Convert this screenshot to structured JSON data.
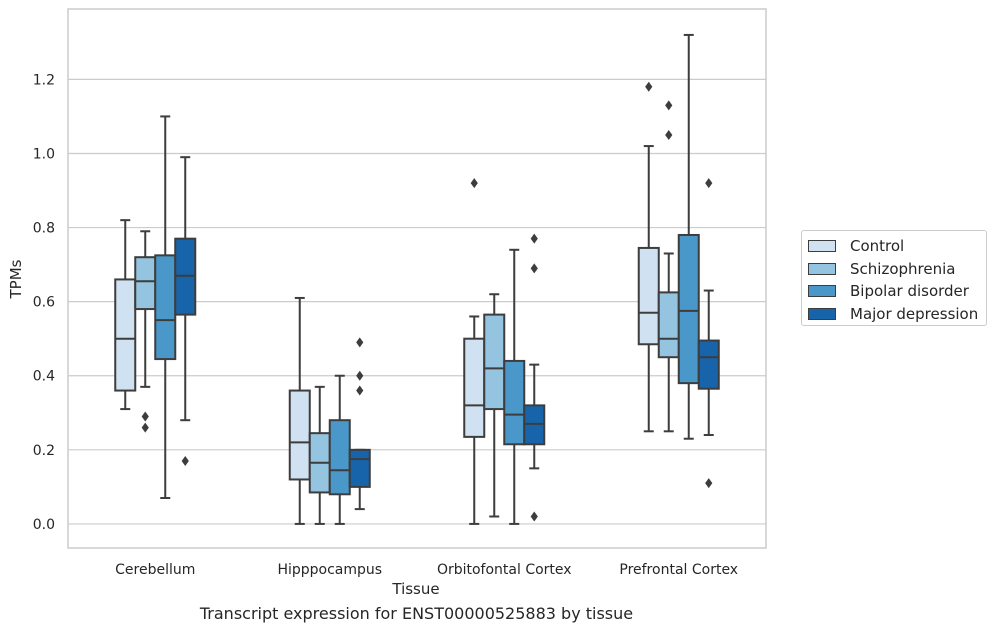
{
  "chart_data": {
    "type": "boxplot",
    "xlabel": "Tissue",
    "ylabel": "TPMs",
    "caption": "Transcript expression for ENST00000525883 by tissue",
    "ylim": [
      -0.065,
      1.39
    ],
    "yticks": [
      "0.0",
      "0.2",
      "0.4",
      "0.6",
      "0.8",
      "1.0",
      "1.2"
    ],
    "grid": "horizontal",
    "legend_position": "right",
    "categories": [
      "Cerebellum",
      "Hipppocampus",
      "Orbitofontal Cortex",
      "Prefrontal Cortex"
    ],
    "series": [
      {
        "name": "Control",
        "color": "#d0e1f2",
        "boxes": [
          {
            "whislo": 0.31,
            "q1": 0.36,
            "med": 0.5,
            "q3": 0.66,
            "whishi": 0.82,
            "fliers": []
          },
          {
            "whislo": 0.0,
            "q1": 0.12,
            "med": 0.22,
            "q3": 0.36,
            "whishi": 0.61,
            "fliers": []
          },
          {
            "whislo": 0.0,
            "q1": 0.235,
            "med": 0.32,
            "q3": 0.5,
            "whishi": 0.56,
            "fliers": [
              0.92
            ]
          },
          {
            "whislo": 0.25,
            "q1": 0.485,
            "med": 0.57,
            "q3": 0.745,
            "whishi": 1.02,
            "fliers": [
              1.18
            ]
          }
        ]
      },
      {
        "name": "Schizophrenia",
        "color": "#94c4df",
        "boxes": [
          {
            "whislo": 0.37,
            "q1": 0.58,
            "med": 0.655,
            "q3": 0.72,
            "whishi": 0.79,
            "fliers": [
              0.29,
              0.26
            ]
          },
          {
            "whislo": 0.0,
            "q1": 0.085,
            "med": 0.165,
            "q3": 0.245,
            "whishi": 0.37,
            "fliers": []
          },
          {
            "whislo": 0.02,
            "q1": 0.31,
            "med": 0.42,
            "q3": 0.565,
            "whishi": 0.62,
            "fliers": []
          },
          {
            "whislo": 0.25,
            "q1": 0.45,
            "med": 0.5,
            "q3": 0.625,
            "whishi": 0.73,
            "fliers": [
              1.13,
              1.05
            ]
          }
        ]
      },
      {
        "name": "Bipolar disorder",
        "color": "#4a98c9",
        "boxes": [
          {
            "whislo": 0.07,
            "q1": 0.445,
            "med": 0.55,
            "q3": 0.725,
            "whishi": 1.1,
            "fliers": []
          },
          {
            "whislo": 0.0,
            "q1": 0.08,
            "med": 0.145,
            "q3": 0.28,
            "whishi": 0.4,
            "fliers": []
          },
          {
            "whislo": 0.0,
            "q1": 0.215,
            "med": 0.295,
            "q3": 0.44,
            "whishi": 0.74,
            "fliers": []
          },
          {
            "whislo": 0.23,
            "q1": 0.38,
            "med": 0.575,
            "q3": 0.78,
            "whishi": 1.32,
            "fliers": []
          }
        ]
      },
      {
        "name": "Major depression",
        "color": "#1764ab",
        "boxes": [
          {
            "whislo": 0.28,
            "q1": 0.565,
            "med": 0.67,
            "q3": 0.77,
            "whishi": 0.99,
            "fliers": [
              0.17
            ]
          },
          {
            "whislo": 0.04,
            "q1": 0.1,
            "med": 0.175,
            "q3": 0.2,
            "whishi": 0.2,
            "fliers": [
              0.49,
              0.4,
              0.36
            ]
          },
          {
            "whislo": 0.15,
            "q1": 0.215,
            "med": 0.27,
            "q3": 0.32,
            "whishi": 0.43,
            "fliers": [
              0.77,
              0.69,
              0.02
            ]
          },
          {
            "whislo": 0.24,
            "q1": 0.365,
            "med": 0.45,
            "q3": 0.495,
            "whishi": 0.63,
            "fliers": [
              0.92,
              0.11
            ]
          }
        ]
      }
    ]
  }
}
